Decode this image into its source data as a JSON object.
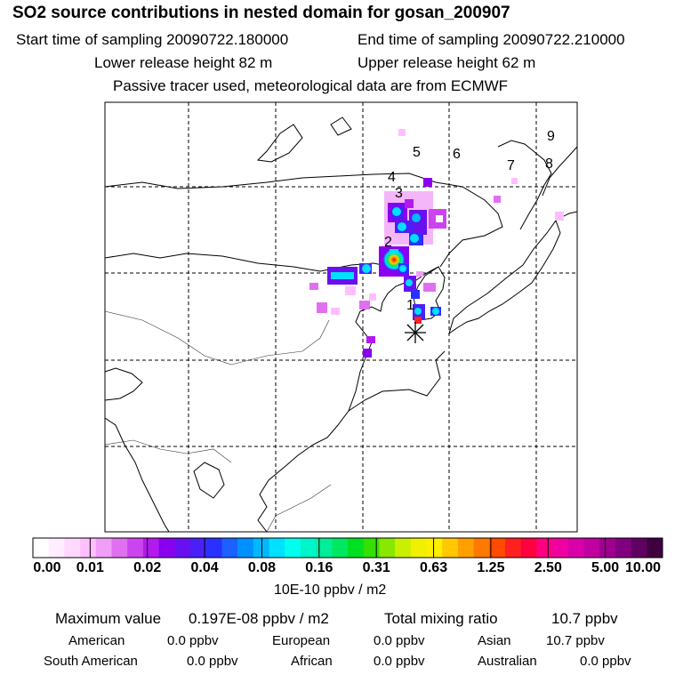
{
  "header": {
    "title": "SO2 source contributions in nested domain for gosan_200907",
    "start_time": "Start time of sampling 20090722.180000",
    "end_time": "End time of sampling 20090722.210000",
    "lower_height": "Lower release height   82 m",
    "upper_height": "Upper release height   62 m",
    "passive": "Passive tracer used, meteorological data are from ECMWF"
  },
  "map": {
    "source_labels": [
      "1",
      "2",
      "3",
      "4",
      "5",
      "6",
      "7",
      "8",
      "9"
    ],
    "receptor_icon": "asterisk-receptor-icon"
  },
  "colorbar": {
    "ticks": [
      "0.00",
      "0.01",
      "0.02",
      "0.04",
      "0.08",
      "0.16",
      "0.31",
      "0.63",
      "1.25",
      "2.50",
      "5.00",
      "10.00"
    ],
    "colors": [
      "#ffffff",
      "#ffeeff",
      "#ffd8ff",
      "#ffbfff",
      "#f09ef7",
      "#e070f0",
      "#cc44f0",
      "#b31aee",
      "#8a00ee",
      "#6a10f0",
      "#4a20f8",
      "#2a30ff",
      "#1c60ff",
      "#0090ff",
      "#00b8ff",
      "#00e0ff",
      "#00ffee",
      "#00f5c8",
      "#00ee99",
      "#00e860",
      "#00e020",
      "#33e000",
      "#88e800",
      "#c8f000",
      "#f0f000",
      "#ffee00",
      "#ffc800",
      "#ffa000",
      "#ff7800",
      "#ff4a00",
      "#ff2020",
      "#ff0040",
      "#ff0080",
      "#f000a0",
      "#d800a8",
      "#c000a0",
      "#a00090",
      "#800080",
      "#600060",
      "#400040"
    ],
    "units": "10E-10 ppbv / m2"
  },
  "summary": {
    "max_label": "Maximum value",
    "max_value": "0.197E-08 ppbv / m2",
    "total_label": "Total mixing ratio",
    "total_value": "10.7 ppbv",
    "regions": [
      {
        "name": "American",
        "value": "0.0 ppbv"
      },
      {
        "name": "European",
        "value": "0.0 ppbv"
      },
      {
        "name": "Asian",
        "value": "10.7 ppbv"
      },
      {
        "name": "South American",
        "value": "0.0 ppbv"
      },
      {
        "name": "African",
        "value": "0.0 ppbv"
      },
      {
        "name": "Australian",
        "value": "0.0 ppbv"
      }
    ]
  }
}
